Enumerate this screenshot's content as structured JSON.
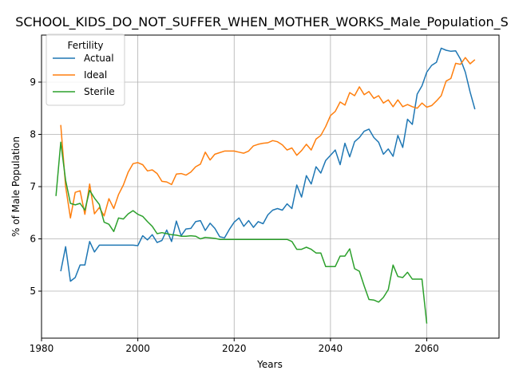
{
  "chart_data": {
    "type": "line",
    "title": "SCHOOL_KIDS_DO_NOT_SUFFER_WHEN_MOTHER_WORKS_Male_Population_S",
    "xlabel": "Years",
    "ylabel": "% of Male Population",
    "xlim": [
      1980,
      2075
    ],
    "ylim": [
      4.1,
      9.9
    ],
    "xticks": [
      1980,
      2000,
      2020,
      2040,
      2060
    ],
    "yticks": [
      5,
      6,
      7,
      8,
      9
    ],
    "grid": true,
    "legend": {
      "title": "Fertility",
      "placement": "top-left"
    },
    "series": [
      {
        "name": "Actual",
        "color": "#1f77b4",
        "points": [
          [
            1984,
            5.38
          ],
          [
            1985,
            5.85
          ],
          [
            1986,
            5.19
          ],
          [
            1987,
            5.26
          ],
          [
            1988,
            5.5
          ],
          [
            1989,
            5.5
          ],
          [
            1990,
            5.95
          ],
          [
            1991,
            5.75
          ],
          [
            1992,
            5.88
          ],
          [
            1993,
            5.88
          ],
          [
            1994,
            5.88
          ],
          [
            1995,
            5.88
          ],
          [
            1996,
            5.88
          ],
          [
            1997,
            5.88
          ],
          [
            1998,
            5.88
          ],
          [
            1999,
            5.88
          ],
          [
            2000,
            5.87
          ],
          [
            2001,
            6.06
          ],
          [
            2002,
            5.98
          ],
          [
            2003,
            6.08
          ],
          [
            2004,
            5.93
          ],
          [
            2005,
            5.97
          ],
          [
            2006,
            6.17
          ],
          [
            2007,
            5.95
          ],
          [
            2008,
            6.34
          ],
          [
            2009,
            6.06
          ],
          [
            2010,
            6.19
          ],
          [
            2011,
            6.2
          ],
          [
            2012,
            6.33
          ],
          [
            2013,
            6.35
          ],
          [
            2014,
            6.16
          ],
          [
            2015,
            6.3
          ],
          [
            2016,
            6.2
          ],
          [
            2017,
            6.04
          ],
          [
            2018,
            6.02
          ],
          [
            2019,
            6.18
          ],
          [
            2020,
            6.32
          ],
          [
            2021,
            6.4
          ],
          [
            2022,
            6.24
          ],
          [
            2023,
            6.35
          ],
          [
            2024,
            6.22
          ],
          [
            2025,
            6.33
          ],
          [
            2026,
            6.29
          ],
          [
            2027,
            6.46
          ],
          [
            2028,
            6.55
          ],
          [
            2029,
            6.58
          ],
          [
            2030,
            6.55
          ],
          [
            2031,
            6.67
          ],
          [
            2032,
            6.58
          ],
          [
            2033,
            7.03
          ],
          [
            2034,
            6.8
          ],
          [
            2035,
            7.21
          ],
          [
            2036,
            7.05
          ],
          [
            2037,
            7.38
          ],
          [
            2038,
            7.26
          ],
          [
            2039,
            7.5
          ],
          [
            2040,
            7.6
          ],
          [
            2041,
            7.7
          ],
          [
            2042,
            7.42
          ],
          [
            2043,
            7.83
          ],
          [
            2044,
            7.57
          ],
          [
            2045,
            7.86
          ],
          [
            2046,
            7.94
          ],
          [
            2047,
            8.06
          ],
          [
            2048,
            8.1
          ],
          [
            2049,
            7.94
          ],
          [
            2050,
            7.85
          ],
          [
            2051,
            7.62
          ],
          [
            2052,
            7.72
          ],
          [
            2053,
            7.58
          ],
          [
            2054,
            7.98
          ],
          [
            2055,
            7.75
          ],
          [
            2056,
            8.29
          ],
          [
            2057,
            8.19
          ],
          [
            2058,
            8.77
          ],
          [
            2059,
            8.93
          ],
          [
            2060,
            9.19
          ],
          [
            2061,
            9.32
          ],
          [
            2062,
            9.38
          ],
          [
            2063,
            9.65
          ],
          [
            2064,
            9.61
          ],
          [
            2065,
            9.59
          ],
          [
            2066,
            9.6
          ],
          [
            2067,
            9.44
          ],
          [
            2068,
            9.19
          ],
          [
            2069,
            8.81
          ],
          [
            2070,
            8.48
          ]
        ]
      },
      {
        "name": "Ideal",
        "color": "#ff7f0e",
        "points": [
          [
            1984,
            8.18
          ],
          [
            1985,
            7.0
          ],
          [
            1986,
            6.4
          ],
          [
            1987,
            6.89
          ],
          [
            1988,
            6.92
          ],
          [
            1989,
            6.47
          ],
          [
            1990,
            7.05
          ],
          [
            1991,
            6.48
          ],
          [
            1992,
            6.6
          ],
          [
            1993,
            6.44
          ],
          [
            1994,
            6.77
          ],
          [
            1995,
            6.58
          ],
          [
            1996,
            6.85
          ],
          [
            1997,
            7.03
          ],
          [
            1998,
            7.28
          ],
          [
            1999,
            7.44
          ],
          [
            2000,
            7.46
          ],
          [
            2001,
            7.42
          ],
          [
            2002,
            7.3
          ],
          [
            2003,
            7.32
          ],
          [
            2004,
            7.25
          ],
          [
            2005,
            7.1
          ],
          [
            2006,
            7.09
          ],
          [
            2007,
            7.04
          ],
          [
            2008,
            7.24
          ],
          [
            2009,
            7.25
          ],
          [
            2010,
            7.22
          ],
          [
            2011,
            7.28
          ],
          [
            2012,
            7.38
          ],
          [
            2013,
            7.43
          ],
          [
            2014,
            7.66
          ],
          [
            2015,
            7.51
          ],
          [
            2016,
            7.62
          ],
          [
            2017,
            7.65
          ],
          [
            2018,
            7.68
          ],
          [
            2019,
            7.68
          ],
          [
            2020,
            7.68
          ],
          [
            2021,
            7.66
          ],
          [
            2022,
            7.64
          ],
          [
            2023,
            7.68
          ],
          [
            2024,
            7.78
          ],
          [
            2025,
            7.81
          ],
          [
            2026,
            7.83
          ],
          [
            2027,
            7.84
          ],
          [
            2028,
            7.88
          ],
          [
            2029,
            7.86
          ],
          [
            2030,
            7.8
          ],
          [
            2031,
            7.7
          ],
          [
            2032,
            7.74
          ],
          [
            2033,
            7.6
          ],
          [
            2034,
            7.69
          ],
          [
            2035,
            7.81
          ],
          [
            2036,
            7.7
          ],
          [
            2037,
            7.91
          ],
          [
            2038,
            7.98
          ],
          [
            2039,
            8.15
          ],
          [
            2040,
            8.36
          ],
          [
            2041,
            8.44
          ],
          [
            2042,
            8.62
          ],
          [
            2043,
            8.56
          ],
          [
            2044,
            8.8
          ],
          [
            2045,
            8.74
          ],
          [
            2046,
            8.91
          ],
          [
            2047,
            8.76
          ],
          [
            2048,
            8.82
          ],
          [
            2049,
            8.69
          ],
          [
            2050,
            8.74
          ],
          [
            2051,
            8.6
          ],
          [
            2052,
            8.66
          ],
          [
            2053,
            8.53
          ],
          [
            2054,
            8.66
          ],
          [
            2055,
            8.53
          ],
          [
            2056,
            8.57
          ],
          [
            2057,
            8.53
          ],
          [
            2058,
            8.5
          ],
          [
            2059,
            8.6
          ],
          [
            2060,
            8.52
          ],
          [
            2061,
            8.55
          ],
          [
            2062,
            8.64
          ],
          [
            2063,
            8.74
          ],
          [
            2064,
            9.02
          ],
          [
            2065,
            9.07
          ],
          [
            2066,
            9.36
          ],
          [
            2067,
            9.34
          ],
          [
            2068,
            9.47
          ],
          [
            2069,
            9.35
          ],
          [
            2070,
            9.43
          ]
        ]
      },
      {
        "name": "Sterile",
        "color": "#2ca02c",
        "points": [
          [
            1983,
            6.82
          ],
          [
            1984,
            7.85
          ],
          [
            1985,
            7.12
          ],
          [
            1986,
            6.68
          ],
          [
            1987,
            6.65
          ],
          [
            1988,
            6.68
          ],
          [
            1989,
            6.55
          ],
          [
            1990,
            6.93
          ],
          [
            1991,
            6.78
          ],
          [
            1992,
            6.66
          ],
          [
            1993,
            6.32
          ],
          [
            1994,
            6.28
          ],
          [
            1995,
            6.14
          ],
          [
            1996,
            6.4
          ],
          [
            1997,
            6.38
          ],
          [
            1998,
            6.48
          ],
          [
            1999,
            6.54
          ],
          [
            2000,
            6.47
          ],
          [
            2001,
            6.43
          ],
          [
            2002,
            6.33
          ],
          [
            2003,
            6.24
          ],
          [
            2004,
            6.1
          ],
          [
            2005,
            6.12
          ],
          [
            2006,
            6.1
          ],
          [
            2007,
            6.08
          ],
          [
            2008,
            6.07
          ],
          [
            2009,
            6.05
          ],
          [
            2010,
            6.05
          ],
          [
            2011,
            6.06
          ],
          [
            2012,
            6.05
          ],
          [
            2013,
            6.0
          ],
          [
            2014,
            6.03
          ],
          [
            2015,
            6.02
          ],
          [
            2016,
            6.01
          ],
          [
            2017,
            5.99
          ],
          [
            2018,
            5.99
          ],
          [
            2019,
            5.99
          ],
          [
            2020,
            5.99
          ],
          [
            2021,
            5.99
          ],
          [
            2022,
            5.99
          ],
          [
            2023,
            5.99
          ],
          [
            2024,
            5.99
          ],
          [
            2025,
            5.99
          ],
          [
            2026,
            5.99
          ],
          [
            2027,
            5.99
          ],
          [
            2028,
            5.99
          ],
          [
            2029,
            5.99
          ],
          [
            2030,
            5.99
          ],
          [
            2031,
            5.99
          ],
          [
            2032,
            5.95
          ],
          [
            2033,
            5.8
          ],
          [
            2034,
            5.8
          ],
          [
            2035,
            5.84
          ],
          [
            2036,
            5.8
          ],
          [
            2037,
            5.73
          ],
          [
            2038,
            5.73
          ],
          [
            2039,
            5.47
          ],
          [
            2040,
            5.47
          ],
          [
            2041,
            5.47
          ],
          [
            2042,
            5.67
          ],
          [
            2043,
            5.67
          ],
          [
            2044,
            5.81
          ],
          [
            2045,
            5.43
          ],
          [
            2046,
            5.38
          ],
          [
            2047,
            5.1
          ],
          [
            2048,
            4.84
          ],
          [
            2049,
            4.83
          ],
          [
            2050,
            4.79
          ],
          [
            2051,
            4.88
          ],
          [
            2052,
            5.03
          ],
          [
            2053,
            5.5
          ],
          [
            2054,
            5.28
          ],
          [
            2055,
            5.26
          ],
          [
            2056,
            5.36
          ],
          [
            2057,
            5.23
          ],
          [
            2058,
            5.23
          ],
          [
            2059,
            5.23
          ],
          [
            2060,
            4.38
          ]
        ]
      }
    ]
  }
}
